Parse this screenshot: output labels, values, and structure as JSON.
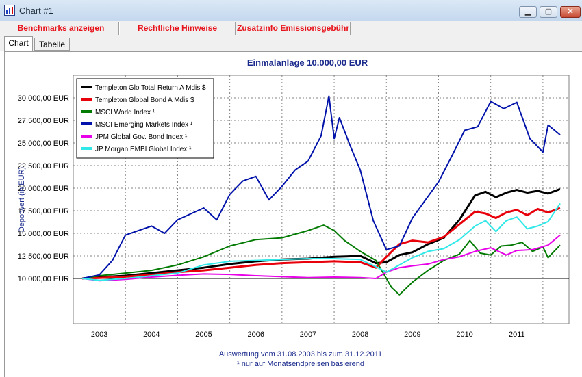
{
  "window": {
    "title": "Chart #1",
    "minimize": "▁",
    "maximize": "▢",
    "close": "✕"
  },
  "toolbar": {
    "benchmarks": "Benchmarks anzeigen",
    "legal": "Rechtliche Hinweise",
    "fees": "Zusatzinfo Emissionsgebühr"
  },
  "tabs": {
    "chart": "Chart",
    "table": "Tabelle"
  },
  "colors": {
    "title": "#1a2a8c",
    "grid": "#808080",
    "plot_bg": "#ffffff"
  },
  "chart_data": {
    "type": "line",
    "title": "Einmalanlage 10.000,00 EUR",
    "ylabel": "Depotwert (in EUR)",
    "xlabel": "",
    "footnote1": "Auswertung vom 31.08.2003 bis zum 31.12.2011",
    "footnote2": "¹ nur auf Monatsendpreisen basierend",
    "ylim": [
      5000,
      32500
    ],
    "xlim": [
      2002.5,
      2012.0
    ],
    "yticks": [
      {
        "v": 10000,
        "label": "10.000,00 EUR"
      },
      {
        "v": 12500,
        "label": "12.500,00 EUR"
      },
      {
        "v": 15000,
        "label": "15.000,00 EUR"
      },
      {
        "v": 17500,
        "label": "17.500,00 EUR"
      },
      {
        "v": 20000,
        "label": "20.000,00 EUR"
      },
      {
        "v": 22500,
        "label": "22.500,00 EUR"
      },
      {
        "v": 25000,
        "label": "25.000,00 EUR"
      },
      {
        "v": 27500,
        "label": "27.500,00 EUR"
      },
      {
        "v": 30000,
        "label": "30.000,00 EUR"
      }
    ],
    "ylines": [
      12500,
      15000,
      17500,
      20000,
      22500,
      25000,
      27500,
      30000
    ],
    "xlines": [
      2003.5,
      2004.5,
      2005.5,
      2006.5,
      2007.5,
      2008.5,
      2009.5,
      2010.5,
      2011.5
    ],
    "xticks": [
      {
        "v": 2003,
        "label": "2003"
      },
      {
        "v": 2004,
        "label": "2004"
      },
      {
        "v": 2005,
        "label": "2005"
      },
      {
        "v": 2006,
        "label": "2006"
      },
      {
        "v": 2007,
        "label": "2007"
      },
      {
        "v": 2008,
        "label": "2008"
      },
      {
        "v": 2009,
        "label": "2009"
      },
      {
        "v": 2010,
        "label": "2010"
      },
      {
        "v": 2011,
        "label": "2011"
      }
    ],
    "baseline": 10000,
    "series": [
      {
        "name": "Templeton Glo Total Return A Mdis $",
        "color": "#000000",
        "width": 3,
        "x": [
          2002.67,
          2003.0,
          2003.5,
          2004.0,
          2004.5,
          2005.0,
          2005.5,
          2006.0,
          2006.5,
          2007.0,
          2007.5,
          2008.0,
          2008.3,
          2008.5,
          2008.75,
          2009.0,
          2009.3,
          2009.6,
          2009.9,
          2010.2,
          2010.4,
          2010.6,
          2010.8,
          2011.0,
          2011.2,
          2011.4,
          2011.6,
          2011.83
        ],
        "y": [
          10000,
          10150,
          10300,
          10600,
          10900,
          11200,
          11600,
          11900,
          12100,
          12200,
          12400,
          12500,
          11700,
          11800,
          12600,
          12900,
          13800,
          14500,
          16500,
          19200,
          19600,
          19000,
          19500,
          19800,
          19500,
          19700,
          19400,
          19900
        ]
      },
      {
        "name": "Templeton Global Bond A Mdis $",
        "color": "#e8000b",
        "width": 3,
        "x": [
          2002.67,
          2003.0,
          2003.5,
          2004.0,
          2004.5,
          2005.0,
          2005.5,
          2006.0,
          2006.5,
          2007.0,
          2007.5,
          2008.0,
          2008.3,
          2008.5,
          2008.75,
          2009.0,
          2009.3,
          2009.6,
          2009.9,
          2010.2,
          2010.4,
          2010.6,
          2010.8,
          2011.0,
          2011.2,
          2011.4,
          2011.6,
          2011.83
        ],
        "y": [
          10000,
          10050,
          10200,
          10400,
          10700,
          10900,
          11200,
          11500,
          11700,
          11800,
          11900,
          11800,
          11200,
          12400,
          13800,
          14200,
          14000,
          14600,
          16000,
          17400,
          17200,
          16700,
          17300,
          17600,
          17000,
          17700,
          17300,
          17800
        ]
      },
      {
        "name": "MSCI World Index ¹",
        "color": "#007a00",
        "width": 2,
        "x": [
          2002.67,
          2003.0,
          2003.5,
          2004.0,
          2004.5,
          2005.0,
          2005.5,
          2006.0,
          2006.5,
          2007.0,
          2007.3,
          2007.5,
          2007.7,
          2008.0,
          2008.3,
          2008.5,
          2008.6,
          2008.75,
          2009.0,
          2009.3,
          2009.6,
          2009.9,
          2010.1,
          2010.3,
          2010.5,
          2010.7,
          2010.9,
          2011.1,
          2011.3,
          2011.5,
          2011.6,
          2011.83
        ],
        "y": [
          10000,
          10300,
          10600,
          10900,
          11500,
          12400,
          13600,
          14300,
          14500,
          15300,
          15900,
          15300,
          14200,
          13000,
          12000,
          10000,
          9000,
          8200,
          9600,
          10900,
          12000,
          12700,
          14200,
          12800,
          12600,
          13600,
          13700,
          14000,
          13000,
          13500,
          12300,
          13700
        ]
      },
      {
        "name": "MSCI Emerging Markets Index ¹",
        "color": "#0012a9",
        "width": 2,
        "x": [
          2002.67,
          2003.0,
          2003.25,
          2003.5,
          2004.0,
          2004.25,
          2004.5,
          2005.0,
          2005.25,
          2005.5,
          2005.75,
          2006.0,
          2006.25,
          2006.5,
          2006.75,
          2007.0,
          2007.25,
          2007.4,
          2007.5,
          2007.6,
          2007.8,
          2008.0,
          2008.25,
          2008.5,
          2008.75,
          2009.0,
          2009.25,
          2009.5,
          2009.75,
          2010.0,
          2010.25,
          2010.5,
          2010.75,
          2011.0,
          2011.25,
          2011.5,
          2011.6,
          2011.83
        ],
        "y": [
          10000,
          10400,
          12000,
          14800,
          15800,
          15000,
          16500,
          17800,
          16500,
          19300,
          20800,
          21300,
          18700,
          20200,
          22000,
          23000,
          25800,
          30200,
          25500,
          27800,
          24800,
          22000,
          16400,
          13200,
          13600,
          16700,
          18700,
          20700,
          23500,
          26400,
          26800,
          29600,
          28800,
          29500,
          25500,
          24000,
          27000,
          25900
        ]
      },
      {
        "name": "JPM Global Gov. Bond Index ¹",
        "color": "#e800e8",
        "width": 2,
        "x": [
          2002.67,
          2003.0,
          2003.5,
          2004.0,
          2004.5,
          2005.0,
          2005.5,
          2006.0,
          2006.5,
          2007.0,
          2007.5,
          2008.0,
          2008.3,
          2008.5,
          2008.75,
          2009.0,
          2009.3,
          2009.6,
          2009.9,
          2010.2,
          2010.5,
          2010.8,
          2011.0,
          2011.3,
          2011.6,
          2011.83
        ],
        "y": [
          10000,
          9750,
          9900,
          10150,
          10350,
          10500,
          10450,
          10300,
          10200,
          10100,
          10150,
          10100,
          10000,
          10700,
          11200,
          11400,
          11600,
          12100,
          12400,
          13000,
          13400,
          12600,
          13100,
          13200,
          13700,
          14800
        ]
      },
      {
        "name": "JP Morgan EMBI Global Index ¹",
        "color": "#30e8e8",
        "width": 2,
        "x": [
          2002.67,
          2003.0,
          2003.5,
          2004.0,
          2004.5,
          2005.0,
          2005.5,
          2006.0,
          2006.5,
          2007.0,
          2007.5,
          2008.0,
          2008.3,
          2008.5,
          2008.75,
          2009.0,
          2009.3,
          2009.6,
          2009.9,
          2010.2,
          2010.4,
          2010.6,
          2010.8,
          2011.0,
          2011.2,
          2011.4,
          2011.6,
          2011.83
        ],
        "y": [
          10000,
          9800,
          10000,
          10300,
          10600,
          11500,
          11900,
          12000,
          12100,
          12200,
          12200,
          12100,
          11300,
          10700,
          11500,
          12300,
          13000,
          13300,
          14300,
          15800,
          16400,
          15200,
          16400,
          16800,
          15500,
          15800,
          16300,
          18300
        ]
      }
    ]
  }
}
